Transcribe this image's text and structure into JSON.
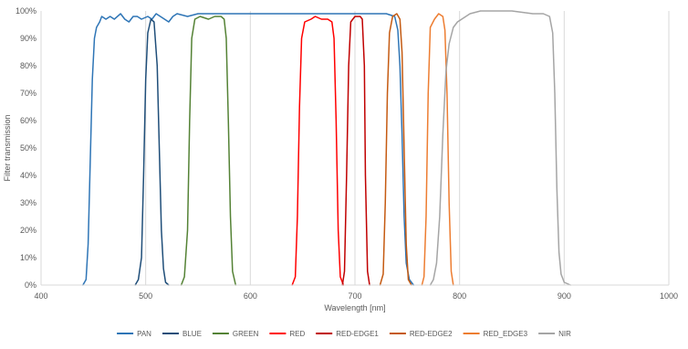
{
  "chart_data": {
    "type": "line",
    "xlabel": "Wavelength [nm]",
    "ylabel": "Filter transmission",
    "xlim": [
      400,
      1000
    ],
    "ylim": [
      0,
      100
    ],
    "x_ticks": [
      400,
      500,
      600,
      700,
      800,
      900,
      1000
    ],
    "y_ticks": [
      0,
      10,
      20,
      30,
      40,
      50,
      60,
      70,
      80,
      90,
      100
    ],
    "y_tick_suffix": "%",
    "grid": "vertical",
    "legend_position": "bottom",
    "series": [
      {
        "name": "PAN",
        "color": "#2E75B6",
        "points": [
          [
            440,
            0
          ],
          [
            443,
            2
          ],
          [
            445,
            15
          ],
          [
            447,
            45
          ],
          [
            449,
            75
          ],
          [
            451,
            90
          ],
          [
            453,
            94
          ],
          [
            456,
            96
          ],
          [
            458,
            98
          ],
          [
            462,
            97
          ],
          [
            466,
            98
          ],
          [
            470,
            97
          ],
          [
            476,
            99
          ],
          [
            480,
            97
          ],
          [
            484,
            96
          ],
          [
            488,
            98
          ],
          [
            492,
            98
          ],
          [
            496,
            97
          ],
          [
            502,
            98
          ],
          [
            506,
            97
          ],
          [
            510,
            99
          ],
          [
            514,
            98
          ],
          [
            518,
            97
          ],
          [
            522,
            96
          ],
          [
            526,
            98
          ],
          [
            530,
            99
          ],
          [
            540,
            98
          ],
          [
            550,
            99
          ],
          [
            600,
            99
          ],
          [
            700,
            99
          ],
          [
            730,
            99
          ],
          [
            738,
            98
          ],
          [
            741,
            93
          ],
          [
            743,
            80
          ],
          [
            745,
            55
          ],
          [
            747,
            25
          ],
          [
            749,
            8
          ],
          [
            752,
            2
          ],
          [
            756,
            0
          ]
        ]
      },
      {
        "name": "BLUE",
        "color": "#1F4E79",
        "points": [
          [
            490,
            0
          ],
          [
            493,
            2
          ],
          [
            496,
            10
          ],
          [
            498,
            40
          ],
          [
            500,
            75
          ],
          [
            502,
            92
          ],
          [
            505,
            97
          ],
          [
            508,
            96
          ],
          [
            511,
            80
          ],
          [
            513,
            50
          ],
          [
            515,
            20
          ],
          [
            517,
            6
          ],
          [
            519,
            1
          ],
          [
            522,
            0
          ]
        ]
      },
      {
        "name": "GREEN",
        "color": "#548235",
        "points": [
          [
            534,
            0
          ],
          [
            537,
            3
          ],
          [
            540,
            20
          ],
          [
            542,
            60
          ],
          [
            544,
            90
          ],
          [
            547,
            97
          ],
          [
            552,
            98
          ],
          [
            560,
            97
          ],
          [
            566,
            98
          ],
          [
            572,
            98
          ],
          [
            575,
            97
          ],
          [
            577,
            90
          ],
          [
            579,
            60
          ],
          [
            581,
            25
          ],
          [
            583,
            5
          ],
          [
            586,
            0
          ]
        ]
      },
      {
        "name": "RED",
        "color": "#FF0000",
        "points": [
          [
            640,
            0
          ],
          [
            643,
            3
          ],
          [
            645,
            25
          ],
          [
            647,
            65
          ],
          [
            649,
            90
          ],
          [
            652,
            96
          ],
          [
            658,
            97
          ],
          [
            662,
            98
          ],
          [
            668,
            97
          ],
          [
            674,
            97
          ],
          [
            678,
            96
          ],
          [
            680,
            90
          ],
          [
            682,
            60
          ],
          [
            684,
            20
          ],
          [
            686,
            3
          ],
          [
            689,
            0
          ]
        ]
      },
      {
        "name": "RED-EDGE1",
        "color": "#C00000",
        "points": [
          [
            688,
            0
          ],
          [
            690,
            5
          ],
          [
            692,
            40
          ],
          [
            694,
            80
          ],
          [
            696,
            96
          ],
          [
            700,
            98
          ],
          [
            705,
            98
          ],
          [
            707,
            97
          ],
          [
            709,
            80
          ],
          [
            710,
            40
          ],
          [
            712,
            5
          ],
          [
            714,
            0
          ]
        ]
      },
      {
        "name": "RED-EDGE2",
        "color": "#C55A11",
        "points": [
          [
            724,
            0
          ],
          [
            727,
            4
          ],
          [
            729,
            30
          ],
          [
            731,
            70
          ],
          [
            733,
            92
          ],
          [
            736,
            98
          ],
          [
            740,
            99
          ],
          [
            743,
            97
          ],
          [
            745,
            85
          ],
          [
            747,
            50
          ],
          [
            749,
            15
          ],
          [
            751,
            2
          ],
          [
            754,
            0
          ]
        ]
      },
      {
        "name": "RED_EDGE3",
        "color": "#ED7D31",
        "points": [
          [
            764,
            0
          ],
          [
            766,
            3
          ],
          [
            768,
            25
          ],
          [
            770,
            70
          ],
          [
            772,
            94
          ],
          [
            776,
            97
          ],
          [
            780,
            99
          ],
          [
            784,
            98
          ],
          [
            786,
            93
          ],
          [
            788,
            70
          ],
          [
            790,
            30
          ],
          [
            792,
            5
          ],
          [
            794,
            0
          ]
        ]
      },
      {
        "name": "NIR",
        "color": "#A5A5A5",
        "points": [
          [
            772,
            0
          ],
          [
            775,
            2
          ],
          [
            778,
            8
          ],
          [
            781,
            25
          ],
          [
            784,
            55
          ],
          [
            787,
            78
          ],
          [
            790,
            88
          ],
          [
            794,
            94
          ],
          [
            798,
            96
          ],
          [
            802,
            97
          ],
          [
            806,
            98
          ],
          [
            810,
            99
          ],
          [
            820,
            100
          ],
          [
            840,
            100
          ],
          [
            850,
            100
          ],
          [
            860,
            99.5
          ],
          [
            870,
            99
          ],
          [
            880,
            99
          ],
          [
            886,
            98
          ],
          [
            889,
            92
          ],
          [
            891,
            70
          ],
          [
            893,
            35
          ],
          [
            895,
            12
          ],
          [
            897,
            4
          ],
          [
            900,
            1
          ],
          [
            906,
            0
          ]
        ]
      }
    ]
  }
}
